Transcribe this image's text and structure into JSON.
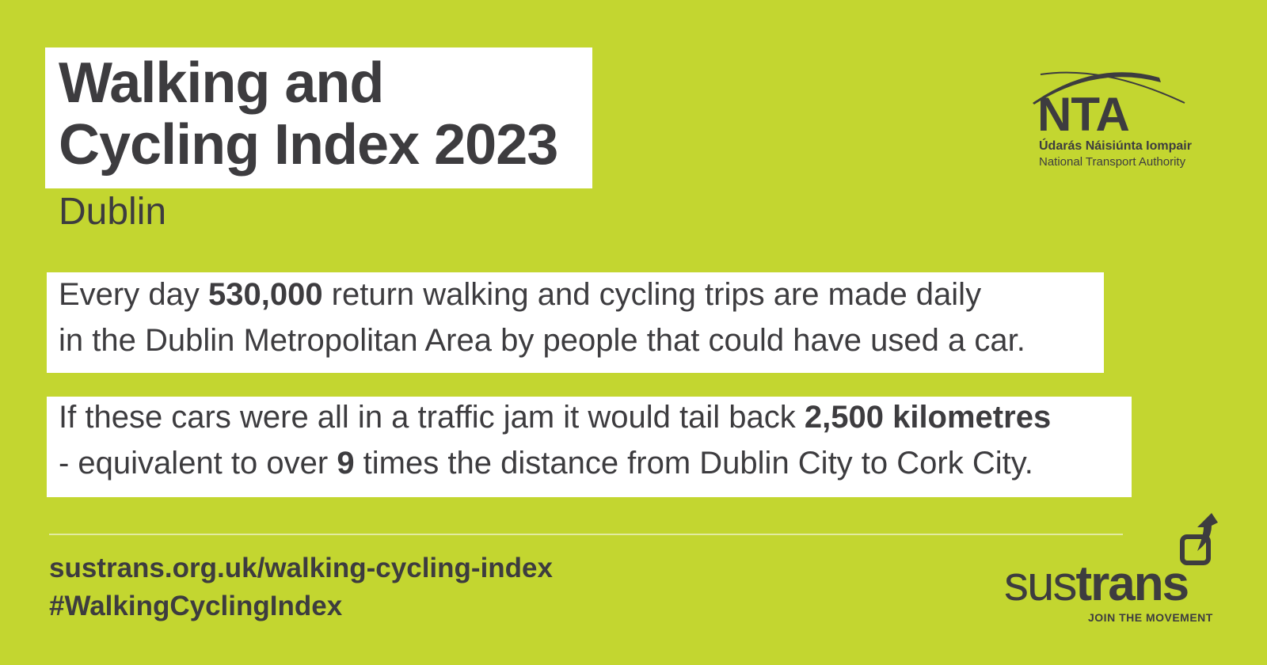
{
  "title": {
    "line1": "Walking and",
    "line2": "Cycling Index 2023"
  },
  "subtitle": "Dublin",
  "fact1": {
    "pre": "Every day ",
    "bold": "530,000",
    "post": " return walking and cycling trips are made daily",
    "line2": "in the Dublin Metropolitan Area by people that could have used a car."
  },
  "fact2": {
    "pre": "If these cars were all in a traffic jam it would tail back ",
    "bold": "2,500 kilometres",
    "line2_pre": "- equivalent to over ",
    "line2_bold": "9",
    "line2_post": " times the distance from Dublin City to Cork City."
  },
  "footer": {
    "url": "sustrans.org.uk/walking-cycling-index",
    "hashtag": "#WalkingCyclingIndex"
  },
  "nta_logo": {
    "acronym": "NTA",
    "irish_name": "Údarás Náisiúnta Iompair",
    "english_name": "National Transport Authority"
  },
  "sustrans_logo": {
    "word_light": "sus",
    "word_bold": "trans",
    "tagline": "JOIN THE MOVEMENT"
  },
  "colors": {
    "background": "#c3d630",
    "text": "#3d3c3f",
    "panel": "#ffffff"
  }
}
